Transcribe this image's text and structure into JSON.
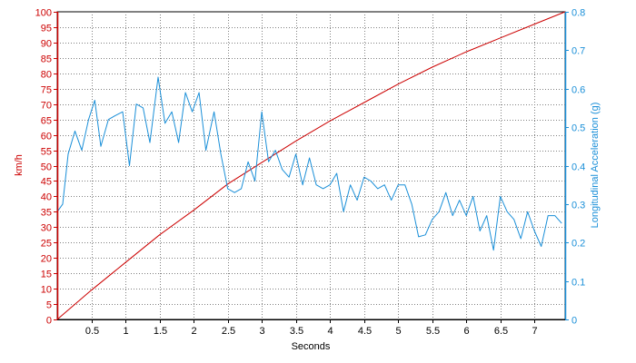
{
  "chart_data": {
    "type": "line",
    "title": "",
    "xlabel": "Seconds",
    "xlim": [
      0,
      7.45
    ],
    "x_ticks": [
      0.5,
      1,
      1.5,
      2,
      2.5,
      3,
      3.5,
      4,
      4.5,
      5,
      5.5,
      6,
      6.5,
      7
    ],
    "x_tick_labels": [
      "0.5",
      "1",
      "1.5",
      "2",
      "2.5",
      "3",
      "3.5",
      "4",
      "4.5",
      "5",
      "5.5",
      "6",
      "6.5",
      "7"
    ],
    "grid": true,
    "left_axis": {
      "label": "km/h",
      "color": "#cc0000",
      "range": [
        0,
        100
      ],
      "ticks": [
        0,
        5,
        10,
        15,
        20,
        25,
        30,
        35,
        40,
        45,
        50,
        55,
        60,
        65,
        70,
        75,
        80,
        85,
        90,
        95,
        100
      ],
      "tick_labels": [
        "0",
        "5",
        "10",
        "15",
        "20",
        "25",
        "30",
        "35",
        "40",
        "45",
        "50",
        "55",
        "60",
        "65",
        "70",
        "75",
        "80",
        "85",
        "90",
        "95",
        "100"
      ]
    },
    "right_axis": {
      "label": "Longitudinal Acceleration (g)",
      "color": "#1a8fd8",
      "range": [
        0,
        0.8
      ],
      "ticks": [
        0,
        0.1,
        0.2,
        0.3,
        0.4,
        0.5,
        0.6,
        0.7,
        0.8
      ],
      "tick_labels": [
        "0",
        "0.1",
        "0.2",
        "0.3",
        "0.4",
        "0.5",
        "0.6",
        "0.7",
        "0.8"
      ]
    },
    "series": [
      {
        "axis": "left",
        "color": "#cc0000",
        "x": [
          0,
          0.5,
          1.0,
          1.5,
          2.0,
          2.5,
          3.0,
          3.5,
          4.0,
          4.5,
          5.0,
          5.5,
          6.0,
          6.5,
          7.0,
          7.45
        ],
        "y": [
          0,
          9.5,
          18.5,
          27.5,
          35.5,
          44,
          51,
          58,
          64.5,
          70.5,
          76.5,
          82,
          87,
          91.5,
          96,
          100
        ]
      },
      {
        "axis": "right",
        "color": "#1a8fd8",
        "x": [
          0,
          0.08,
          0.16,
          0.26,
          0.36,
          0.46,
          0.55,
          0.64,
          0.75,
          0.85,
          0.96,
          1.06,
          1.16,
          1.26,
          1.36,
          1.48,
          1.58,
          1.68,
          1.78,
          1.88,
          1.98,
          2.08,
          2.18,
          2.3,
          2.4,
          2.5,
          2.6,
          2.7,
          2.8,
          2.9,
          3.0,
          3.1,
          3.2,
          3.3,
          3.4,
          3.5,
          3.6,
          3.7,
          3.8,
          3.9,
          4.0,
          4.1,
          4.2,
          4.3,
          4.4,
          4.5,
          4.6,
          4.7,
          4.8,
          4.9,
          5.0,
          5.1,
          5.2,
          5.3,
          5.4,
          5.5,
          5.6,
          5.7,
          5.8,
          5.9,
          6.0,
          6.1,
          6.2,
          6.3,
          6.4,
          6.5,
          6.6,
          6.7,
          6.8,
          6.9,
          7.0,
          7.1,
          7.2,
          7.3,
          7.4
        ],
        "y": [
          0.28,
          0.3,
          0.43,
          0.49,
          0.44,
          0.52,
          0.57,
          0.45,
          0.52,
          0.53,
          0.54,
          0.4,
          0.56,
          0.55,
          0.46,
          0.63,
          0.51,
          0.54,
          0.46,
          0.59,
          0.54,
          0.59,
          0.44,
          0.54,
          0.43,
          0.34,
          0.33,
          0.34,
          0.41,
          0.36,
          0.54,
          0.41,
          0.44,
          0.39,
          0.37,
          0.43,
          0.35,
          0.42,
          0.35,
          0.34,
          0.35,
          0.38,
          0.28,
          0.35,
          0.31,
          0.37,
          0.36,
          0.34,
          0.35,
          0.31,
          0.35,
          0.35,
          0.3,
          0.215,
          0.22,
          0.26,
          0.28,
          0.33,
          0.27,
          0.31,
          0.27,
          0.32,
          0.23,
          0.27,
          0.18,
          0.32,
          0.28,
          0.26,
          0.21,
          0.28,
          0.23,
          0.19,
          0.27,
          0.27,
          0.25
        ]
      }
    ]
  }
}
